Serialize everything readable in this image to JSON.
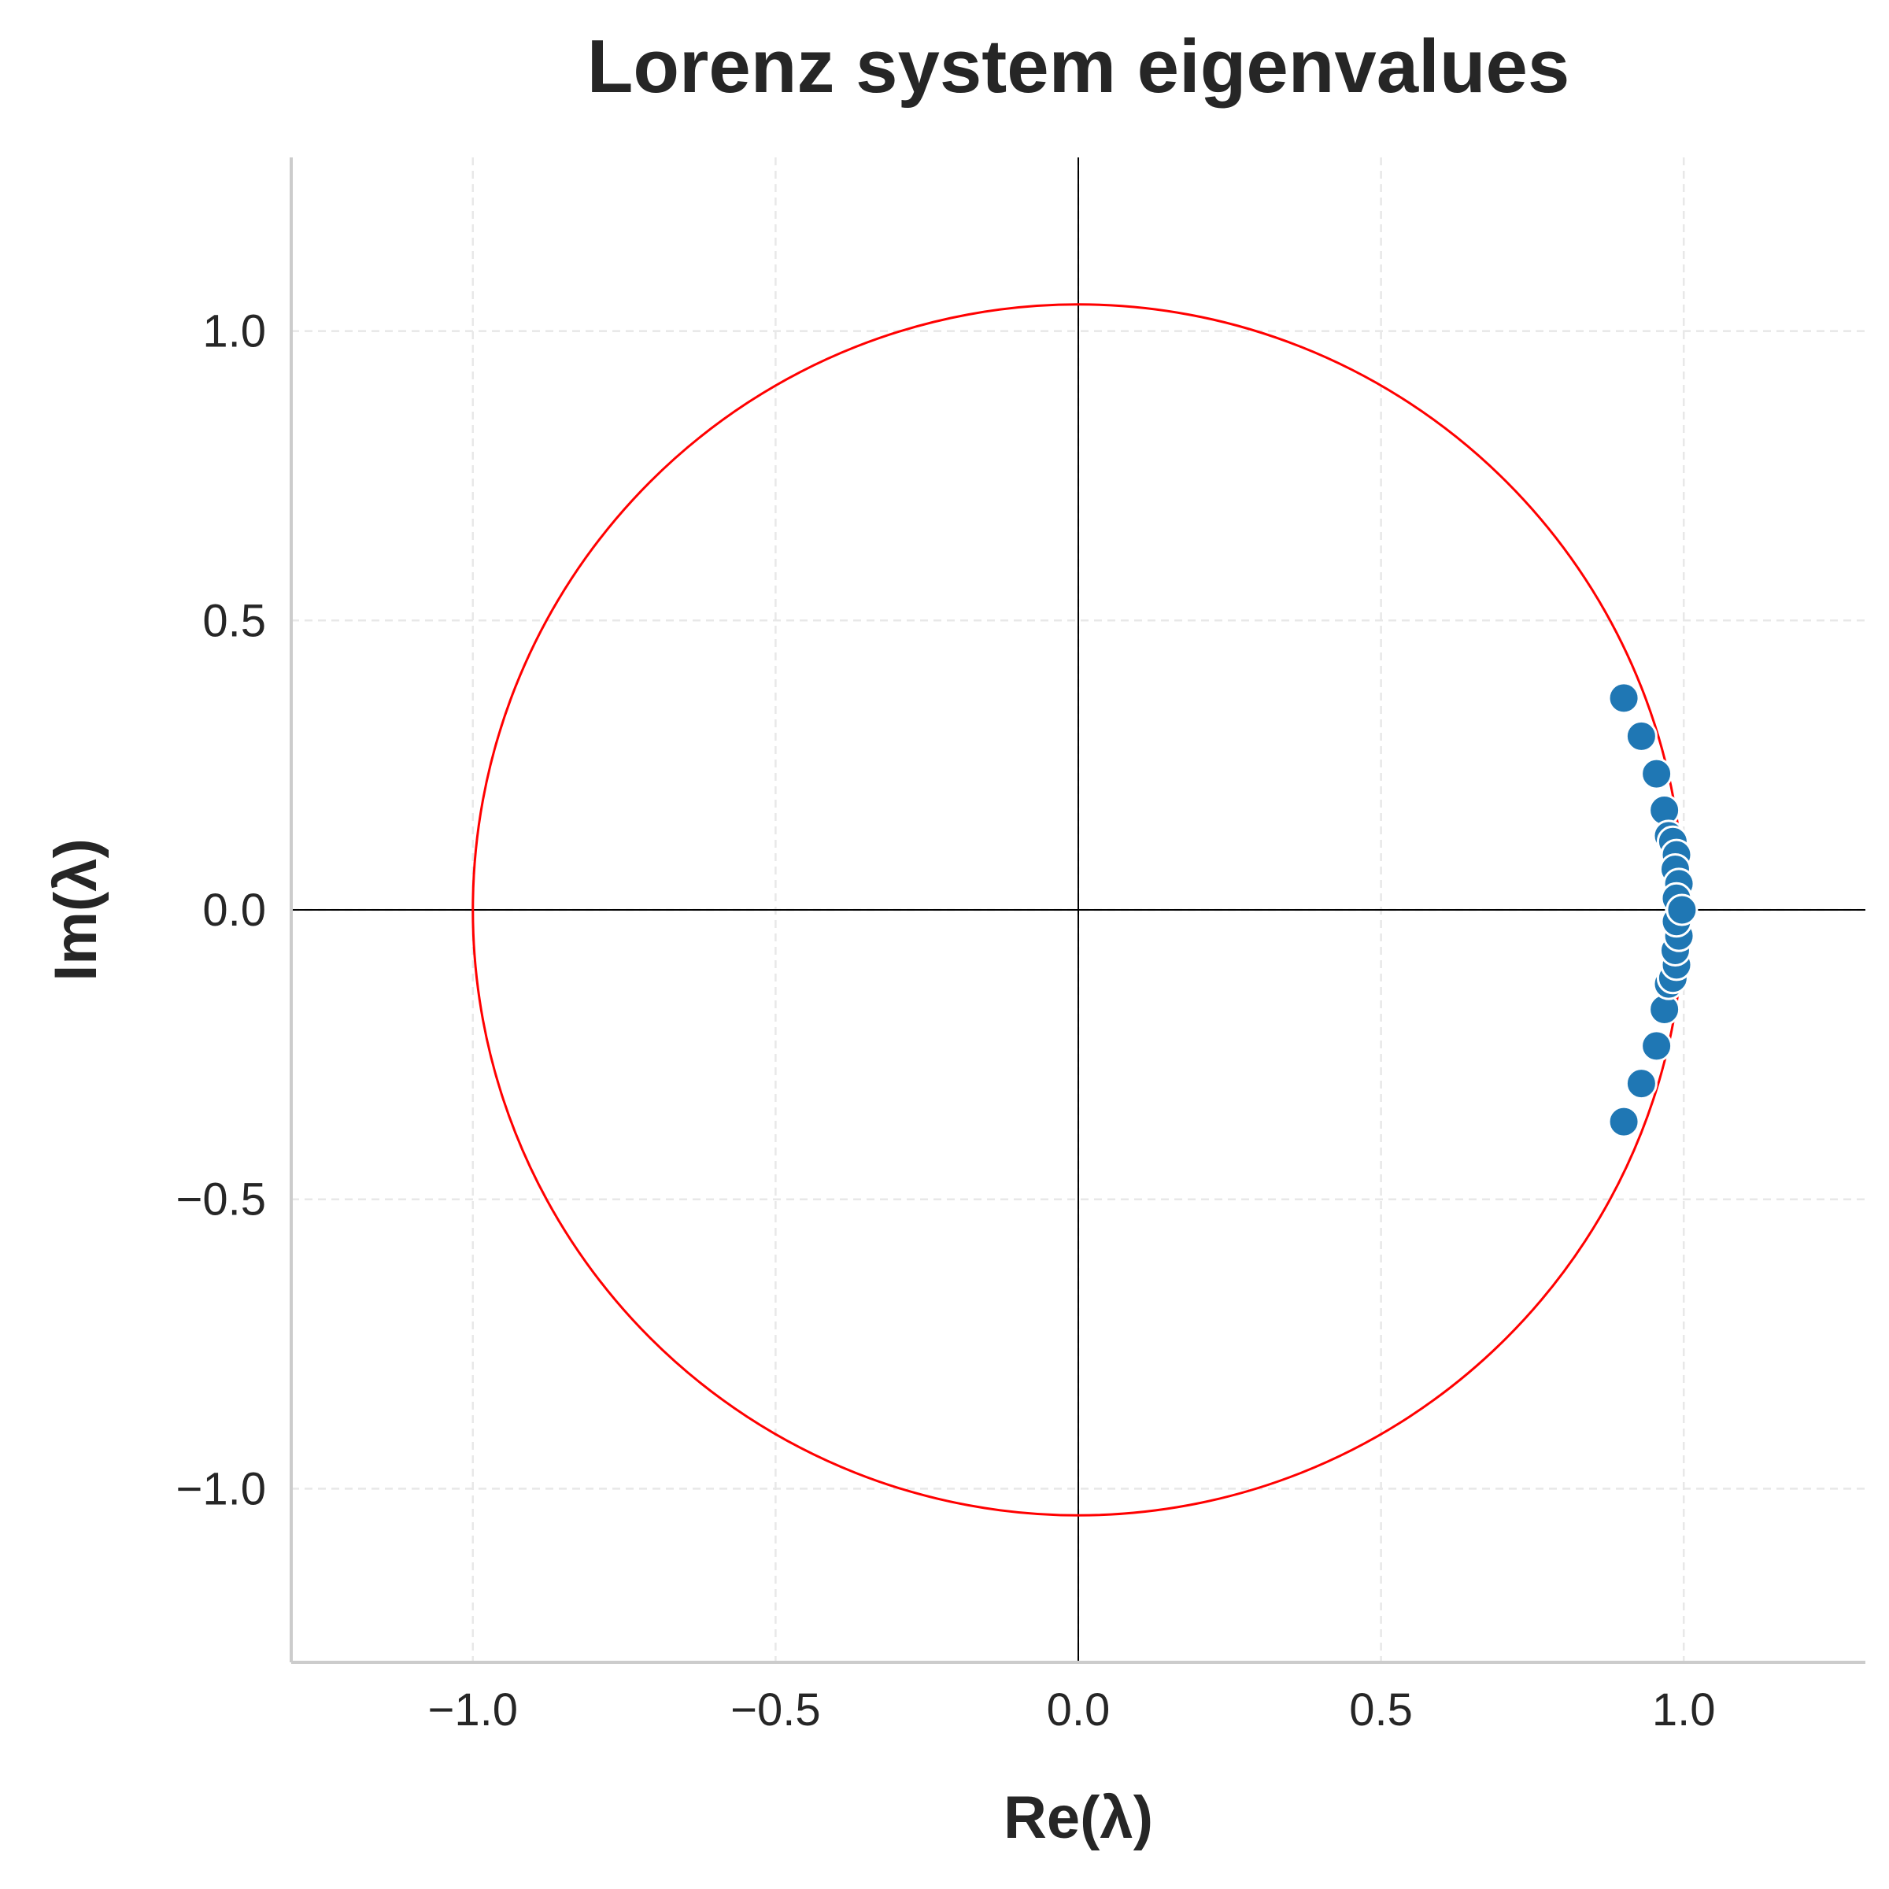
{
  "chart_data": {
    "type": "scatter",
    "title": "Lorenz system eigenvalues",
    "xlabel": "Re(λ)",
    "ylabel": "Im(λ)",
    "xlim": [
      -1.3,
      1.3
    ],
    "ylim": [
      -1.3,
      1.3
    ],
    "xticks": [
      -1.0,
      -0.5,
      0.0,
      0.5,
      1.0
    ],
    "yticks": [
      -1.0,
      -0.5,
      0.0,
      0.5,
      1.0
    ],
    "xtick_labels": [
      "−1.0",
      "−0.5",
      "0.0",
      "0.5",
      "1.0"
    ],
    "ytick_labels": [
      "−1.0",
      "−0.5",
      "0.0",
      "0.5",
      "1.0"
    ],
    "grid": true,
    "zero_lines": true,
    "unit_circle": {
      "center": [
        0,
        0
      ],
      "radius": 1.0,
      "color": "#ff0000"
    },
    "point_color": "#1f77b4",
    "points": [
      {
        "re": 0.901,
        "im": 0.366
      },
      {
        "re": 0.901,
        "im": -0.366
      },
      {
        "re": 0.93,
        "im": 0.3
      },
      {
        "re": 0.93,
        "im": -0.3
      },
      {
        "re": 0.955,
        "im": 0.235
      },
      {
        "re": 0.955,
        "im": -0.235
      },
      {
        "re": 0.968,
        "im": 0.172
      },
      {
        "re": 0.968,
        "im": -0.172
      },
      {
        "re": 0.975,
        "im": 0.128
      },
      {
        "re": 0.975,
        "im": -0.128
      },
      {
        "re": 0.982,
        "im": 0.118
      },
      {
        "re": 0.982,
        "im": -0.118
      },
      {
        "re": 0.988,
        "im": 0.095
      },
      {
        "re": 0.988,
        "im": -0.095
      },
      {
        "re": 0.986,
        "im": 0.07
      },
      {
        "re": 0.986,
        "im": -0.07
      },
      {
        "re": 0.992,
        "im": 0.045
      },
      {
        "re": 0.992,
        "im": -0.045
      },
      {
        "re": 0.988,
        "im": 0.02
      },
      {
        "re": 0.988,
        "im": -0.02
      },
      {
        "re": 0.997,
        "im": 0.0
      }
    ]
  }
}
